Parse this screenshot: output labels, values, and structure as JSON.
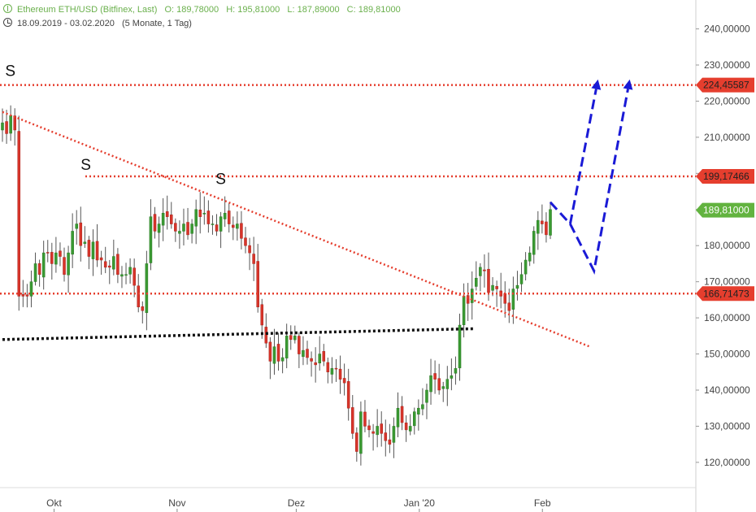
{
  "header": {
    "instrument": "Ethereum ETH/USD (Bitfinex, Last)",
    "open_label": "O:",
    "open": "189,78000",
    "high_label": "H:",
    "high": "195,81000",
    "low_label": "L:",
    "low": "187,89000",
    "close_label": "C:",
    "close": "189,81000",
    "date_range": "18.09.2019 - 03.02.2020",
    "period": "(5 Monate, 1 Tag)"
  },
  "chart_data": {
    "type": "candlestick",
    "x_start": "2019-09-18",
    "x_end": "2020-02-03",
    "ylim": [
      113,
      248
    ],
    "x_ticks": [
      {
        "label": "Okt",
        "date": "2019-10-01"
      },
      {
        "label": "Nov",
        "date": "2019-11-01"
      },
      {
        "label": "Dez",
        "date": "2019-12-01"
      },
      {
        "label": "Jan '20",
        "date": "2020-01-01"
      },
      {
        "label": "Feb",
        "date": "2020-02-01"
      }
    ],
    "y_ticks": [
      120,
      130,
      140,
      150,
      160,
      170,
      180,
      190,
      200,
      210,
      220,
      230,
      240
    ],
    "y_tick_labels": [
      "120,00000",
      "130,00000",
      "140,00000",
      "150,00000",
      "160,00000",
      "170,00000",
      "180,00000",
      "190,00000",
      "200,00000",
      "210,00000",
      "220,00000",
      "230,00000",
      "240,00000"
    ],
    "closes": [
      214,
      211,
      216,
      212,
      166,
      166,
      166,
      170,
      175,
      172,
      178,
      178,
      175,
      178,
      177,
      172,
      178,
      184,
      186,
      180,
      181,
      177,
      181,
      176,
      176,
      174,
      174,
      177,
      172,
      172,
      172,
      174,
      169,
      163,
      162,
      175,
      188,
      184,
      186,
      189,
      188,
      186,
      184,
      184,
      186,
      183,
      186,
      190,
      188,
      189,
      186,
      186,
      184,
      188,
      189,
      186,
      185,
      186,
      182,
      180,
      178,
      175,
      163,
      158,
      153,
      148,
      152,
      148,
      149,
      155,
      154,
      155,
      150,
      151,
      149,
      148,
      147,
      150,
      148,
      145,
      146,
      146,
      143,
      142,
      135,
      128,
      123,
      134,
      130,
      129,
      128,
      130,
      128,
      126,
      125,
      130,
      135,
      131,
      129,
      130,
      134,
      135,
      136,
      140,
      144,
      143,
      140,
      141,
      143,
      144,
      146,
      158,
      166,
      164,
      168,
      171,
      174,
      173,
      167,
      169,
      168,
      166,
      164,
      162,
      168,
      169,
      172,
      176,
      178,
      184,
      187,
      186,
      183,
      190
    ],
    "levels": [
      {
        "value": 224.45587,
        "label": "224,45587",
        "color": "#e53e2e"
      },
      {
        "value": 199.17466,
        "label": "199,17466",
        "color": "#e53e2e"
      },
      {
        "value": 166.71473,
        "label": "166,71473",
        "color": "#e53e2e"
      }
    ],
    "last_price": {
      "value": 189.81,
      "label": "189,81000",
      "color": "#62b33f"
    },
    "trendline": {
      "from": {
        "date": "2019-09-18",
        "value": 217
      },
      "to": {
        "date": "2020-02-13",
        "value": 152
      },
      "color": "#e53e2e"
    },
    "support_line": {
      "from": {
        "date": "2019-09-18",
        "value": 154
      },
      "to": {
        "date": "2020-01-15",
        "value": 157
      },
      "color": "#111111"
    },
    "projection_paths": [
      [
        {
          "date": "2020-02-03",
          "value": 192
        },
        {
          "date": "2020-02-08",
          "value": 186
        },
        {
          "date": "2020-02-15",
          "value": 226
        }
      ],
      [
        {
          "date": "2020-02-08",
          "value": 186
        },
        {
          "date": "2020-02-14",
          "value": 173
        },
        {
          "date": "2020-02-23",
          "value": 226
        }
      ]
    ],
    "annotations": [
      {
        "text": "S",
        "date": "2019-09-20",
        "value": 227
      },
      {
        "text": "S",
        "date": "2019-10-09",
        "value": 201
      },
      {
        "text": "S",
        "date": "2019-11-12",
        "value": 197
      }
    ],
    "colors": {
      "up": "#3a9a32",
      "down": "#d8342a",
      "wick": "#555555",
      "projection": "#1a1ad6"
    }
  }
}
